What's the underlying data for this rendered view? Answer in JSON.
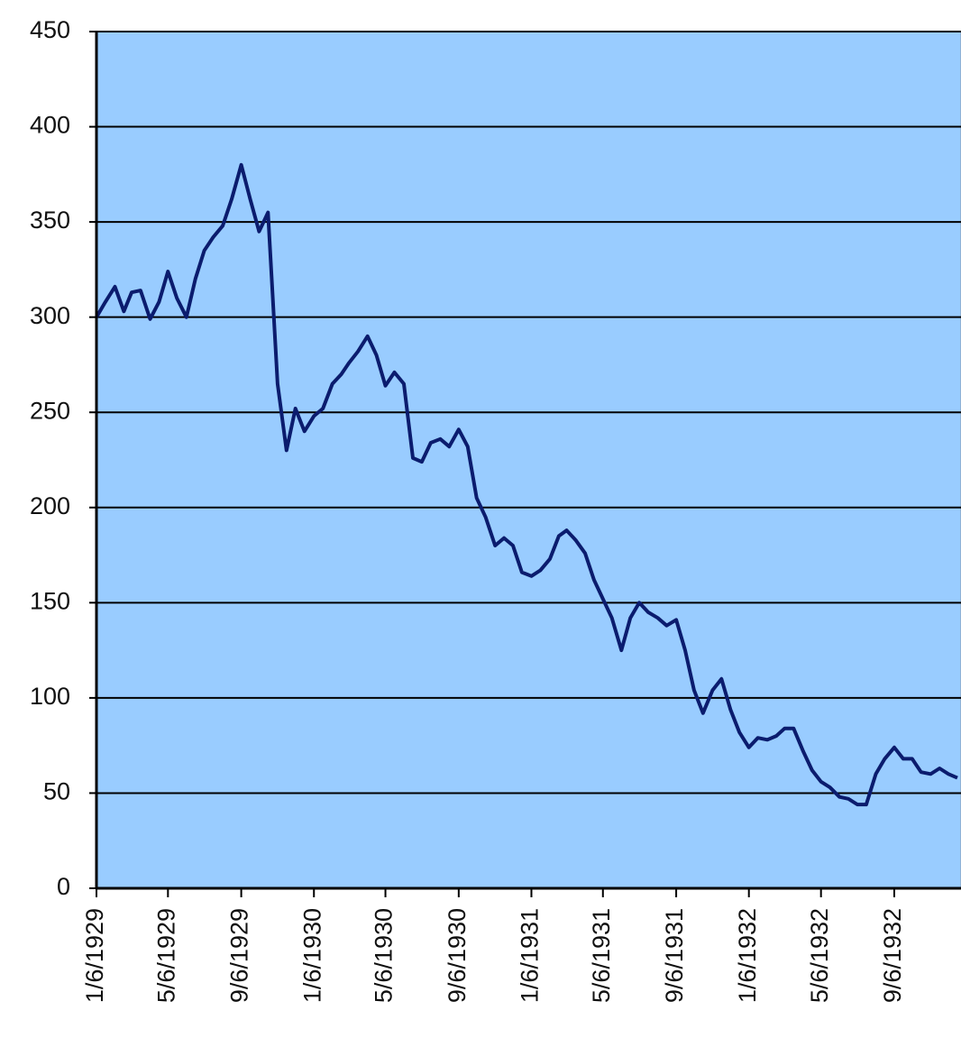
{
  "chart_data": {
    "type": "line",
    "x": [
      "1929-01-06",
      "1929-01-21",
      "1929-02-06",
      "1929-02-21",
      "1929-03-06",
      "1929-03-21",
      "1929-04-06",
      "1929-04-21",
      "1929-05-06",
      "1929-05-21",
      "1929-06-06",
      "1929-06-21",
      "1929-07-06",
      "1929-07-21",
      "1929-08-06",
      "1929-08-21",
      "1929-09-06",
      "1929-09-21",
      "1929-10-06",
      "1929-10-21",
      "1929-11-06",
      "1929-11-21",
      "1929-12-06",
      "1929-12-21",
      "1930-01-06",
      "1930-01-21",
      "1930-02-06",
      "1930-02-21",
      "1930-03-06",
      "1930-03-21",
      "1930-04-06",
      "1930-04-21",
      "1930-05-06",
      "1930-05-21",
      "1930-06-06",
      "1930-06-21",
      "1930-07-06",
      "1930-07-21",
      "1930-08-06",
      "1930-08-21",
      "1930-09-06",
      "1930-09-21",
      "1930-10-06",
      "1930-10-21",
      "1930-11-06",
      "1930-11-21",
      "1930-12-06",
      "1930-12-21",
      "1931-01-06",
      "1931-01-21",
      "1931-02-06",
      "1931-02-21",
      "1931-03-06",
      "1931-03-21",
      "1931-04-06",
      "1931-04-21",
      "1931-05-06",
      "1931-05-21",
      "1931-06-06",
      "1931-06-21",
      "1931-07-06",
      "1931-07-21",
      "1931-08-06",
      "1931-08-21",
      "1931-09-06",
      "1931-09-21",
      "1931-10-06",
      "1931-10-21",
      "1931-11-06",
      "1931-11-21",
      "1931-12-06",
      "1931-12-21",
      "1932-01-06",
      "1932-01-21",
      "1932-02-06",
      "1932-02-21",
      "1932-03-06",
      "1932-03-21",
      "1932-04-06",
      "1932-04-21",
      "1932-05-06",
      "1932-05-21",
      "1932-06-06",
      "1932-06-21",
      "1932-07-06",
      "1932-07-21",
      "1932-08-06",
      "1932-08-21",
      "1932-09-06",
      "1932-09-21",
      "1932-10-06",
      "1932-10-21",
      "1932-11-06",
      "1932-11-21",
      "1932-12-06",
      "1932-12-21"
    ],
    "values": [
      300,
      308,
      316,
      303,
      313,
      314,
      299,
      308,
      324,
      310,
      300,
      320,
      335,
      342,
      348,
      362,
      380,
      362,
      345,
      355,
      265,
      230,
      252,
      240,
      248,
      252,
      265,
      270,
      276,
      282,
      290,
      280,
      264,
      271,
      265,
      226,
      224,
      234,
      236,
      232,
      241,
      232,
      205,
      195,
      180,
      184,
      180,
      166,
      164,
      167,
      173,
      185,
      188,
      183,
      176,
      162,
      152,
      142,
      125,
      142,
      150,
      145,
      142,
      138,
      141,
      125,
      104,
      92,
      104,
      110,
      94,
      82,
      74,
      79,
      78,
      80,
      84,
      84,
      72,
      62,
      56,
      53,
      48,
      47,
      44,
      44,
      60,
      68,
      74,
      68,
      68,
      61,
      60,
      63,
      60,
      58
    ],
    "color": "#0b1c6e",
    "xlim": [
      "1929-01-06",
      "1932-12-27"
    ],
    "xticks": [
      {
        "value": "1929-01-06",
        "label": "1/6/1929"
      },
      {
        "value": "1929-05-06",
        "label": "5/6/1929"
      },
      {
        "value": "1929-09-06",
        "label": "9/6/1929"
      },
      {
        "value": "1930-01-06",
        "label": "1/6/1930"
      },
      {
        "value": "1930-05-06",
        "label": "5/6/1930"
      },
      {
        "value": "1930-09-06",
        "label": "9/6/1930"
      },
      {
        "value": "1931-01-06",
        "label": "1/6/1931"
      },
      {
        "value": "1931-05-06",
        "label": "5/6/1931"
      },
      {
        "value": "1931-09-06",
        "label": "9/6/1931"
      },
      {
        "value": "1932-01-06",
        "label": "1/6/1932"
      },
      {
        "value": "1932-05-06",
        "label": "5/6/1932"
      },
      {
        "value": "1932-09-06",
        "label": "9/6/1932"
      }
    ],
    "ylim": [
      0,
      450
    ],
    "yticks": [
      0,
      50,
      100,
      150,
      200,
      250,
      300,
      350,
      400,
      450
    ],
    "grid": true
  }
}
